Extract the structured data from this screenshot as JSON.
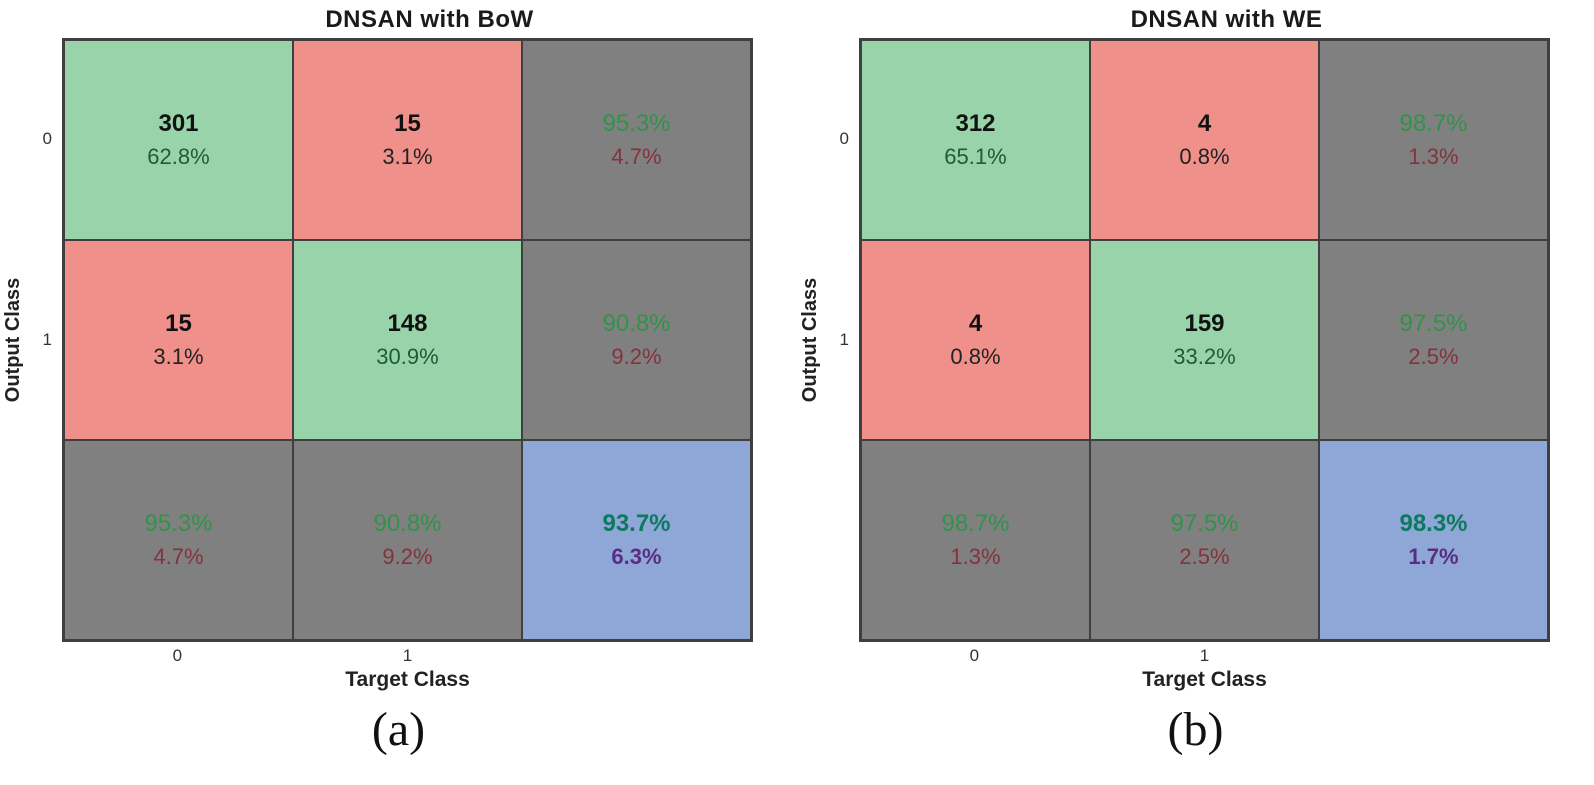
{
  "colors": {
    "correct_cell": "#98d3a9",
    "error_cell": "#f0908a",
    "summary_cell": "#808080",
    "overall_cell": "#8fa7d6",
    "summary_positive_text": "#2f9447",
    "summary_negative_text": "#84323c",
    "overall_positive_text": "#0b7a5e",
    "overall_negative_text": "#5a2d85"
  },
  "charts": [
    {
      "title": "DNSAN with BoW",
      "xlabel": "Target Class",
      "ylabel": "Output Class",
      "xticks": [
        "0",
        "1"
      ],
      "yticks": [
        "0",
        "1"
      ],
      "caption": "(a)",
      "cells": [
        [
          {
            "line1": "301",
            "line2": "62.8%"
          },
          {
            "line1": "15",
            "line2": "3.1%"
          },
          {
            "line1": "95.3%",
            "line2": "4.7%"
          }
        ],
        [
          {
            "line1": "15",
            "line2": "3.1%"
          },
          {
            "line1": "148",
            "line2": "30.9%"
          },
          {
            "line1": "90.8%",
            "line2": "9.2%"
          }
        ],
        [
          {
            "line1": "95.3%",
            "line2": "4.7%"
          },
          {
            "line1": "90.8%",
            "line2": "9.2%"
          },
          {
            "line1": "93.7%",
            "line2": "6.3%"
          }
        ]
      ]
    },
    {
      "title": "DNSAN with WE",
      "xlabel": "Target Class",
      "ylabel": "Output Class",
      "xticks": [
        "0",
        "1"
      ],
      "yticks": [
        "0",
        "1"
      ],
      "caption": "(b)",
      "cells": [
        [
          {
            "line1": "312",
            "line2": "65.1%"
          },
          {
            "line1": "4",
            "line2": "0.8%"
          },
          {
            "line1": "98.7%",
            "line2": "1.3%"
          }
        ],
        [
          {
            "line1": "4",
            "line2": "0.8%"
          },
          {
            "line1": "159",
            "line2": "33.2%"
          },
          {
            "line1": "97.5%",
            "line2": "2.5%"
          }
        ],
        [
          {
            "line1": "98.7%",
            "line2": "1.3%"
          },
          {
            "line1": "97.5%",
            "line2": "2.5%"
          },
          {
            "line1": "98.3%",
            "line2": "1.7%"
          }
        ]
      ]
    }
  ],
  "chart_data": [
    {
      "type": "heatmap",
      "subtype": "confusion-matrix",
      "title": "DNSAN with BoW",
      "xlabel": "Target Class",
      "ylabel": "Output Class",
      "classes": [
        "0",
        "1"
      ],
      "counts": [
        [
          301,
          15
        ],
        [
          15,
          148
        ]
      ],
      "count_percent_of_total": [
        [
          62.8,
          3.1
        ],
        [
          3.1,
          30.9
        ]
      ],
      "row_summary_percent": [
        [
          95.3,
          4.7
        ],
        [
          90.8,
          9.2
        ]
      ],
      "column_summary_percent": [
        [
          95.3,
          4.7
        ],
        [
          90.8,
          9.2
        ]
      ],
      "overall_accuracy_percent": 93.7,
      "overall_error_percent": 6.3,
      "caption": "(a)"
    },
    {
      "type": "heatmap",
      "subtype": "confusion-matrix",
      "title": "DNSAN with WE",
      "xlabel": "Target Class",
      "ylabel": "Output Class",
      "classes": [
        "0",
        "1"
      ],
      "counts": [
        [
          312,
          4
        ],
        [
          4,
          159
        ]
      ],
      "count_percent_of_total": [
        [
          65.1,
          0.8
        ],
        [
          0.8,
          33.2
        ]
      ],
      "row_summary_percent": [
        [
          98.7,
          1.3
        ],
        [
          97.5,
          2.5
        ]
      ],
      "column_summary_percent": [
        [
          98.7,
          1.3
        ],
        [
          97.5,
          2.5
        ]
      ],
      "overall_accuracy_percent": 98.3,
      "overall_error_percent": 1.7,
      "caption": "(b)"
    }
  ]
}
